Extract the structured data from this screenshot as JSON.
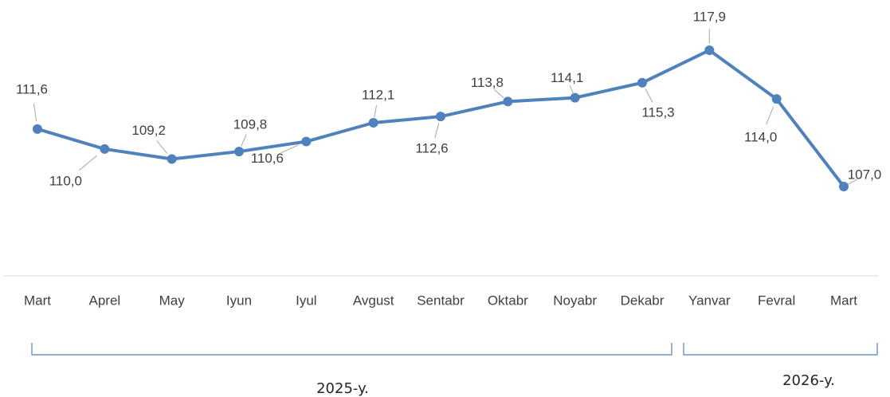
{
  "chart_data": {
    "type": "line",
    "categories": [
      "Mart",
      "Aprel",
      "May",
      "Iyun",
      "Iyul",
      "Avgust",
      "Sentabr",
      "Oktabr",
      "Noyabr",
      "Dekabr",
      "Yanvar",
      "Fevral",
      "Mart"
    ],
    "series": [
      {
        "color": "#4f81bd",
        "values": [
          111.6,
          110.0,
          109.2,
          109.8,
          110.6,
          112.1,
          112.6,
          113.8,
          114.1,
          115.3,
          117.9,
          114.0,
          107.0
        ],
        "value_labels": [
          "111,6",
          "110,0",
          "109,2",
          "109,8",
          "110,6",
          "112,1",
          "112,6",
          "113,8",
          "114,1",
          "115,3",
          "117,9",
          "114,0",
          "107,0"
        ]
      }
    ],
    "category_groups": [
      {
        "label": "2025-y."
      },
      {
        "label": "2026-y."
      }
    ]
  }
}
